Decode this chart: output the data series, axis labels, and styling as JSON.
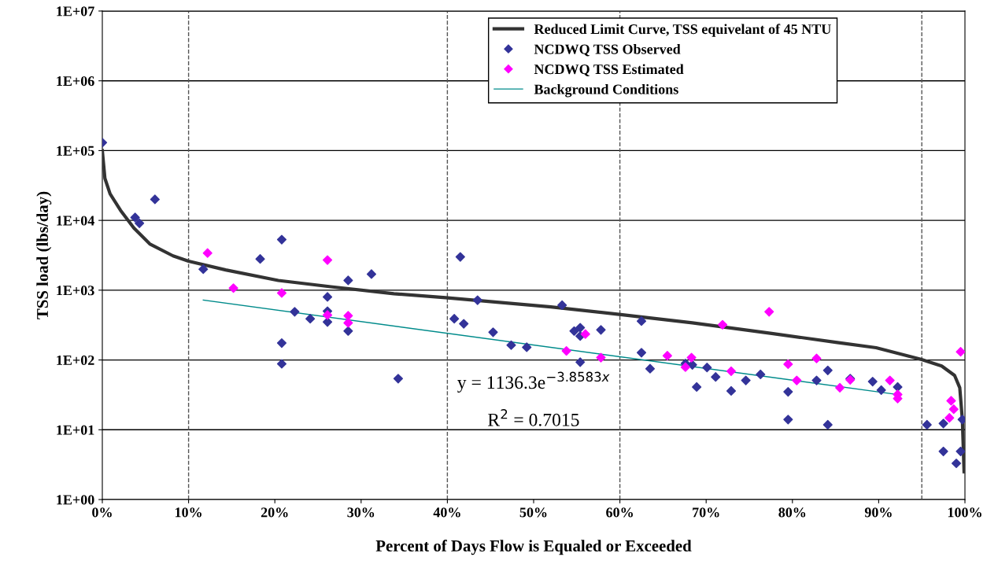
{
  "chart_data": {
    "type": "scatter",
    "xlabel": "Percent of Days Flow is Equaled or Exceeded",
    "ylabel": "TSS load (lbs/day)",
    "log": "y",
    "grid": "y",
    "legend": "top right",
    "xlim": [
      0,
      100
    ],
    "xticks": [
      {
        "value": 0,
        "label": "0%"
      },
      {
        "value": 10,
        "label": "10%"
      },
      {
        "value": 20,
        "label": "20%"
      },
      {
        "value": 30,
        "label": "30%"
      },
      {
        "value": 40,
        "label": "40%"
      },
      {
        "value": 50,
        "label": "50%"
      },
      {
        "value": 60,
        "label": "60%"
      },
      {
        "value": 70,
        "label": "70%"
      },
      {
        "value": 80,
        "label": "80%"
      },
      {
        "value": 90,
        "label": "90%"
      },
      {
        "value": 100,
        "label": "100%"
      }
    ],
    "ylim": [
      1,
      10000000
    ],
    "yticks": [
      {
        "value": 1,
        "label": "1E+00"
      },
      {
        "value": 10,
        "label": "1E+01"
      },
      {
        "value": 100,
        "label": "1E+02"
      },
      {
        "value": 1000,
        "label": "1E+03"
      },
      {
        "value": 10000,
        "label": "1E+04"
      },
      {
        "value": 100000,
        "label": "1E+05"
      },
      {
        "value": 1000000,
        "label": "1E+06"
      },
      {
        "value": 10000000,
        "label": "1E+07"
      }
    ],
    "ref_lines": [
      {
        "axis": "x",
        "value": 10,
        "line_style": "dashed",
        "color": "#555555"
      },
      {
        "axis": "x",
        "value": 40,
        "line_style": "dashed",
        "color": "#555555"
      },
      {
        "axis": "x",
        "value": 60,
        "line_style": "dashed",
        "color": "#555555"
      },
      {
        "axis": "x",
        "value": 95,
        "line_style": "dashed",
        "color": "#555555"
      }
    ],
    "annotations": [
      "y = 1136.3e$^{−3.8583x}$",
      "R$^{2}$ = 0.7015"
    ],
    "series": [
      {
        "name": "Reduced Limit Curve, TSS equivelant of 45 NTU",
        "type": "line",
        "color": "#333333",
        "marker": "none",
        "line_style": "solid",
        "x": [
          0,
          0.3,
          0.9,
          2.1,
          3.65,
          5.5,
          8.2,
          10,
          14.3,
          20.4,
          26.5,
          33.8,
          39.8,
          52,
          59.9,
          68.4,
          77.6,
          85.2,
          89.7,
          94.9,
          97.3,
          98.8,
          99.4,
          99.7,
          99.9
        ],
        "values": [
          100000,
          40000,
          24000,
          14000,
          7800,
          4600,
          3100,
          2600,
          1950,
          1380,
          1120,
          890,
          780,
          575,
          450,
          340,
          240,
          178,
          150,
          102,
          82,
          60,
          40,
          14,
          2.5
        ]
      },
      {
        "name": "NCDWQ TSS Observed",
        "color": "#333399",
        "marker": "diamond",
        "x": [
          0,
          3.8,
          4.3,
          6.1,
          11.7,
          18.3,
          20.8,
          20.8,
          20.8,
          22.3,
          24.1,
          26.1,
          26.1,
          26.1,
          28.5,
          28.5,
          31.2,
          34.3,
          40.8,
          41.5,
          41.9,
          43.5,
          45.3,
          47.4,
          49.2,
          53.3,
          54.7,
          55.4,
          55.4,
          55.4,
          57.8,
          62.5,
          62.5,
          63.5,
          67.6,
          68.4,
          68.9,
          70.1,
          71.1,
          72.9,
          74.6,
          76.3,
          79.5,
          79.5,
          82.8,
          84.1,
          84.1,
          86.7,
          89.3,
          90.3,
          92.2,
          95.6,
          97.5,
          97.5,
          99.0,
          99.5,
          99.7
        ],
        "values": [
          130000,
          11000,
          9100,
          20000,
          2000,
          2800,
          5300,
          175,
          88,
          490,
          390,
          800,
          500,
          350,
          1380,
          260,
          1700,
          54,
          390,
          3000,
          330,
          720,
          250,
          163,
          152,
          610,
          260,
          290,
          220,
          93,
          270,
          360,
          127,
          75,
          89,
          85,
          41,
          78,
          57,
          36,
          51,
          62,
          35,
          14,
          51,
          71,
          11.8,
          54,
          49,
          37,
          41,
          11.8,
          12.3,
          4.9,
          3.3,
          4.9,
          14
        ]
      },
      {
        "name": "NCDWQ TSS Estimated",
        "color": "#ff00ff",
        "marker": "diamond",
        "x": [
          12.2,
          15.2,
          20.8,
          26.1,
          26.1,
          28.5,
          28.5,
          53.8,
          56.0,
          57.8,
          65.5,
          67.6,
          68.3,
          71.9,
          72.9,
          77.3,
          79.5,
          80.5,
          82.8,
          85.5,
          86.7,
          91.3,
          92.2,
          92.2,
          98.2,
          98.4,
          98.7,
          99.5
        ],
        "values": [
          3400,
          1070,
          910,
          2700,
          440,
          430,
          340,
          135,
          235,
          108,
          115,
          79,
          108,
          320,
          69,
          490,
          87,
          51,
          105,
          40,
          52,
          51,
          32,
          28,
          14.8,
          26,
          19.7,
          131
        ]
      },
      {
        "name": "Background Conditions",
        "type": "line",
        "color": "#008b8b",
        "marker": "none",
        "line_style": "solid",
        "x": [
          11.7,
          92.2
        ],
        "values": [
          720,
          32
        ]
      }
    ]
  }
}
